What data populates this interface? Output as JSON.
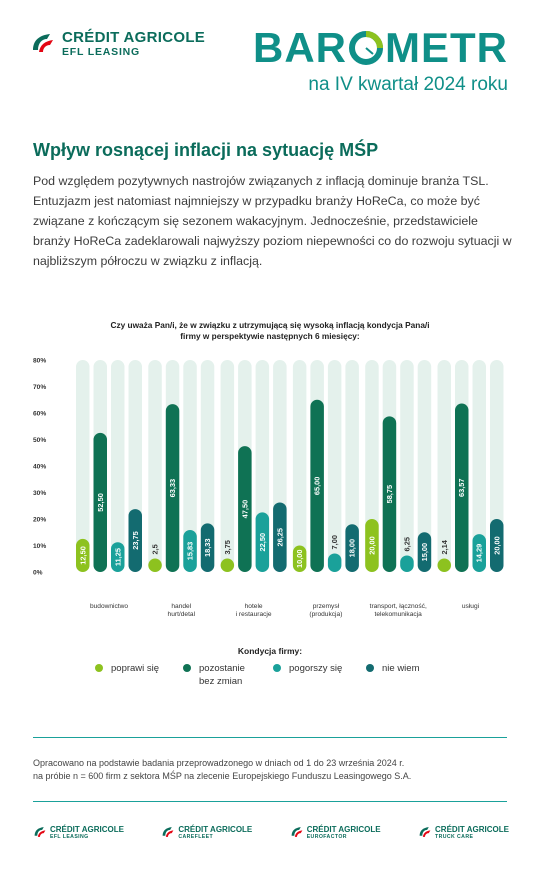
{
  "header": {
    "brand_line1": "CRÉDIT AGRICOLE",
    "brand_line2": "EFL LEASING",
    "barometr_left": "BAR",
    "barometr_right": "METR",
    "period": "na IV kwartał 2024 roku"
  },
  "section": {
    "title": "Wpływ rosnącej inflacji na sytuację MŚP",
    "intro": "Pod względem pozytywnych nastrojów związanych z inflacją dominuje branża TSL. Entuzjazm jest natomiast najmniejszy w przypadku branży HoReCa, co może być związane z kończącym się sezonem wakacyjnym. Jednocześnie, przedstawiciele branży HoReCa zadeklarowali najwyższy poziom niepewności co do rozwoju sytuacji w najbliższym półroczu w związku z inflacją."
  },
  "chart_data": {
    "type": "bar",
    "title": "Czy uważa Pan/i, że w związku z utrzymującą się wysoką inflacją kondycja Pana/i firmy w perspektywie następnych 6 miesięcy:",
    "categories": [
      [
        "budownictwo"
      ],
      [
        "handel",
        "hurt/detal"
      ],
      [
        "hotele",
        "i restauracje"
      ],
      [
        "przemysł",
        "(produkcja)"
      ],
      [
        "transport, łączność,",
        "telekomunikacja"
      ],
      [
        "usługi"
      ]
    ],
    "series": [
      {
        "name": "poprawi się",
        "color": "#8dc21f",
        "values": [
          12.5,
          2.5,
          3.75,
          10.0,
          20.0,
          2.14
        ],
        "labels": [
          "12,50",
          "2,5",
          "3,75",
          "10,00",
          "20,00",
          "2,14"
        ]
      },
      {
        "name": "pozostanie bez zmian",
        "color": "#0f7254",
        "values": [
          52.5,
          63.33,
          47.5,
          65.0,
          58.75,
          63.57
        ],
        "labels": [
          "52,50",
          "63,33",
          "47,50",
          "65,00",
          "58,75",
          "63,57"
        ]
      },
      {
        "name": "pogorszy się",
        "color": "#1aa19a",
        "values": [
          11.25,
          15.83,
          22.5,
          7.0,
          6.25,
          14.29
        ],
        "labels": [
          "11,25",
          "15,83",
          "22,50",
          "7,00",
          "6,25",
          "14,29"
        ]
      },
      {
        "name": "nie wiem",
        "color": "#136b70",
        "values": [
          23.75,
          18.33,
          26.25,
          18.0,
          15.0,
          20.0
        ],
        "labels": [
          "23,75",
          "18,33",
          "26,25",
          "18,00",
          "15,00",
          "20,00"
        ]
      }
    ],
    "ylim": [
      0,
      80
    ],
    "yticks": [
      0,
      10,
      20,
      30,
      40,
      50,
      60,
      70,
      80
    ],
    "ytick_labels": [
      "0%",
      "10%",
      "20%",
      "30%",
      "40%",
      "50%",
      "60%",
      "70%",
      "80%"
    ],
    "background_track_color": "#e4f1ec",
    "legend_title": "Kondycja firmy:",
    "legend_position": "bottom",
    "grid": false
  },
  "legend": [
    {
      "label_line1": "poprawi się",
      "label_line2": "",
      "color": "#8dc21f"
    },
    {
      "label_line1": "pozostanie",
      "label_line2": "bez zmian",
      "color": "#0f7254"
    },
    {
      "label_line1": "pogorszy się",
      "label_line2": "",
      "color": "#1aa19a"
    },
    {
      "label_line1": "nie wiem",
      "label_line2": "",
      "color": "#136b70"
    }
  ],
  "source": {
    "line1": "Opracowano na podstawie badania przeprowadzonego w dniach od 1 do 23 września 2024 r.",
    "line2": "na próbie n = 600 firm z sektora MŚP na zlecenie Europejskiego Funduszu Leasingowego S.A."
  },
  "footer": [
    {
      "brand": "CRÉDIT AGRICOLE",
      "sub": "EFL LEASING"
    },
    {
      "brand": "CRÉDIT AGRICOLE",
      "sub": "CAREFLEET"
    },
    {
      "brand": "CRÉDIT AGRICOLE",
      "sub": "EUROFACTOR"
    },
    {
      "brand": "CRÉDIT AGRICOLE",
      "sub": "TRUCK CARE"
    }
  ],
  "colors": {
    "brand_green": "#0b6c5b",
    "teal": "#0f8f88",
    "rule": "#1aa19a"
  }
}
